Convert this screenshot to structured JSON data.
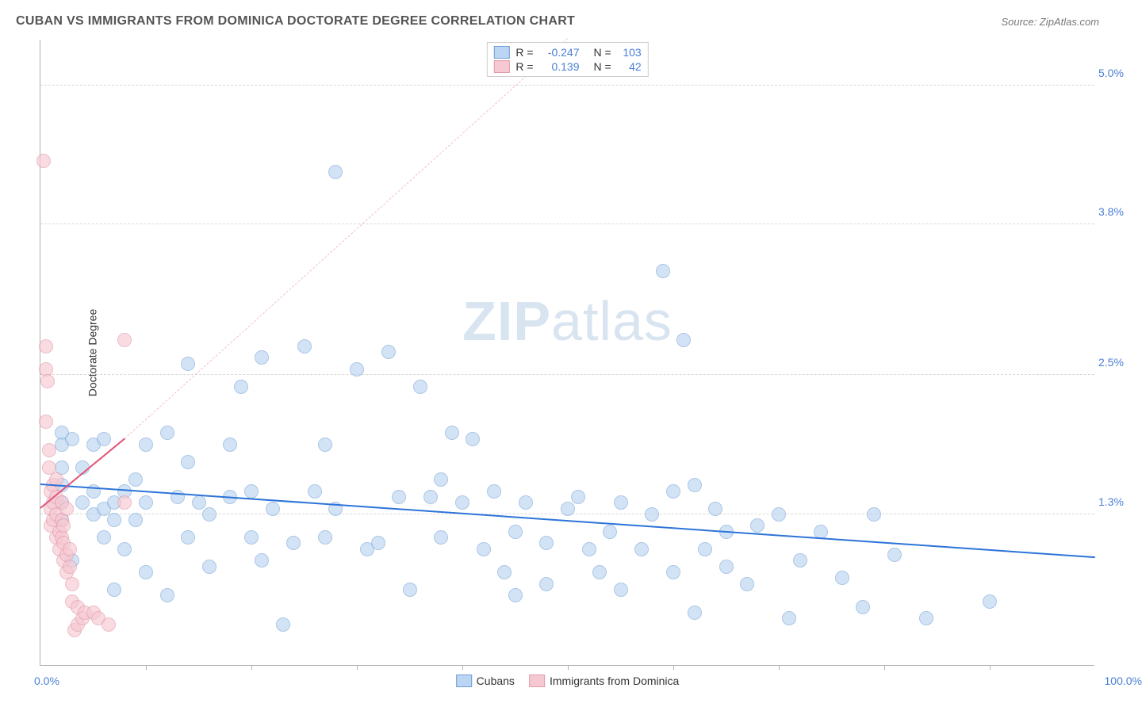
{
  "title": "CUBAN VS IMMIGRANTS FROM DOMINICA DOCTORATE DEGREE CORRELATION CHART",
  "source": "Source: ZipAtlas.com",
  "ylabel": "Doctorate Degree",
  "watermark_bold": "ZIP",
  "watermark_light": "atlas",
  "chart": {
    "type": "scatter",
    "xlim": [
      0,
      100
    ],
    "ylim": [
      0,
      5.4
    ],
    "x_ticks_labels": [
      {
        "pos": 0,
        "label": "0.0%"
      },
      {
        "pos": 100,
        "label": "100.0%"
      }
    ],
    "x_minor_tick_step": 10,
    "y_ticks": [
      {
        "pos": 1.3,
        "label": "1.3%"
      },
      {
        "pos": 2.5,
        "label": "2.5%"
      },
      {
        "pos": 3.8,
        "label": "3.8%"
      },
      {
        "pos": 5.0,
        "label": "5.0%"
      }
    ],
    "y_tick_color": "#4a7fd6",
    "x_tick_color": "#4a7fd6",
    "grid_color": "#d9d9d9",
    "background_color": "#ffffff",
    "marker_radius": 9,
    "series": [
      {
        "name": "Cubans",
        "fill": "#bcd5f2",
        "stroke": "#7fa9d8",
        "fill_opacity": 0.65,
        "legend_fill": "#bcd5f2",
        "legend_stroke": "#6f9fd6",
        "R": "-0.247",
        "N": "103",
        "trend": {
          "x1": 0,
          "y1": 1.55,
          "x2": 100,
          "y2": 0.92,
          "color": "#2d73d8",
          "width": 2.5,
          "solid": true
        },
        "points": [
          [
            2,
            2.0
          ],
          [
            2,
            1.9
          ],
          [
            2,
            1.7
          ],
          [
            2,
            1.55
          ],
          [
            2,
            1.4
          ],
          [
            2,
            1.25
          ],
          [
            3,
            1.95
          ],
          [
            3,
            0.9
          ],
          [
            4,
            1.7
          ],
          [
            4,
            1.4
          ],
          [
            5,
            1.3
          ],
          [
            5,
            1.5
          ],
          [
            5,
            1.9
          ],
          [
            6,
            1.95
          ],
          [
            6,
            1.35
          ],
          [
            6,
            1.1
          ],
          [
            7,
            1.4
          ],
          [
            7,
            1.25
          ],
          [
            7,
            0.65
          ],
          [
            8,
            1.5
          ],
          [
            8,
            1.0
          ],
          [
            9,
            1.6
          ],
          [
            9,
            1.25
          ],
          [
            10,
            1.9
          ],
          [
            10,
            1.4
          ],
          [
            10,
            0.8
          ],
          [
            12,
            2.0
          ],
          [
            12,
            0.6
          ],
          [
            13,
            1.45
          ],
          [
            14,
            2.6
          ],
          [
            14,
            1.75
          ],
          [
            14,
            1.1
          ],
          [
            15,
            1.4
          ],
          [
            16,
            1.3
          ],
          [
            16,
            0.85
          ],
          [
            18,
            1.9
          ],
          [
            18,
            1.45
          ],
          [
            19,
            2.4
          ],
          [
            20,
            1.5
          ],
          [
            20,
            1.1
          ],
          [
            21,
            2.65
          ],
          [
            21,
            0.9
          ],
          [
            22,
            1.35
          ],
          [
            23,
            0.35
          ],
          [
            24,
            1.05
          ],
          [
            25,
            2.75
          ],
          [
            26,
            1.5
          ],
          [
            27,
            1.9
          ],
          [
            27,
            1.1
          ],
          [
            28,
            4.25
          ],
          [
            28,
            1.35
          ],
          [
            30,
            2.55
          ],
          [
            31,
            1.0
          ],
          [
            32,
            1.05
          ],
          [
            33,
            2.7
          ],
          [
            34,
            1.45
          ],
          [
            35,
            0.65
          ],
          [
            36,
            2.4
          ],
          [
            37,
            1.45
          ],
          [
            38,
            1.1
          ],
          [
            38,
            1.6
          ],
          [
            39,
            2.0
          ],
          [
            40,
            1.4
          ],
          [
            41,
            1.95
          ],
          [
            42,
            1.0
          ],
          [
            43,
            1.5
          ],
          [
            44,
            0.8
          ],
          [
            45,
            1.15
          ],
          [
            45,
            0.6
          ],
          [
            46,
            1.4
          ],
          [
            48,
            1.05
          ],
          [
            48,
            0.7
          ],
          [
            50,
            1.35
          ],
          [
            51,
            1.45
          ],
          [
            52,
            1.0
          ],
          [
            53,
            0.8
          ],
          [
            54,
            1.15
          ],
          [
            55,
            1.4
          ],
          [
            55,
            0.65
          ],
          [
            57,
            1.0
          ],
          [
            58,
            1.3
          ],
          [
            59,
            3.4
          ],
          [
            60,
            1.5
          ],
          [
            60,
            0.8
          ],
          [
            61,
            2.8
          ],
          [
            62,
            1.55
          ],
          [
            62,
            0.45
          ],
          [
            63,
            1.0
          ],
          [
            64,
            1.35
          ],
          [
            65,
            1.15
          ],
          [
            65,
            0.85
          ],
          [
            67,
            0.7
          ],
          [
            68,
            1.2
          ],
          [
            70,
            1.3
          ],
          [
            71,
            0.4
          ],
          [
            72,
            0.9
          ],
          [
            74,
            1.15
          ],
          [
            76,
            0.75
          ],
          [
            78,
            0.5
          ],
          [
            79,
            1.3
          ],
          [
            81,
            0.95
          ],
          [
            84,
            0.4
          ],
          [
            90,
            0.55
          ]
        ]
      },
      {
        "name": "Immigrants from Dominica",
        "fill": "#f6c8d2",
        "stroke": "#e19cab",
        "fill_opacity": 0.65,
        "legend_fill": "#f6c8d2",
        "legend_stroke": "#e19cab",
        "R": "0.139",
        "N": "42",
        "trend_solid": {
          "x1": 0,
          "y1": 1.35,
          "x2": 8,
          "y2": 1.95,
          "color": "#e05577",
          "width": 2.5,
          "solid": true
        },
        "trend_dashed": {
          "x1": 8,
          "y1": 1.95,
          "x2": 50,
          "y2": 5.4,
          "color": "#f2c0cd",
          "width": 1.5,
          "solid": false
        },
        "points": [
          [
            0.3,
            4.35
          ],
          [
            0.5,
            2.75
          ],
          [
            0.5,
            2.55
          ],
          [
            0.5,
            2.1
          ],
          [
            0.7,
            2.45
          ],
          [
            0.8,
            1.7
          ],
          [
            0.8,
            1.85
          ],
          [
            1.0,
            1.5
          ],
          [
            1.0,
            1.35
          ],
          [
            1.0,
            1.2
          ],
          [
            1.2,
            1.55
          ],
          [
            1.2,
            1.4
          ],
          [
            1.2,
            1.25
          ],
          [
            1.5,
            1.1
          ],
          [
            1.5,
            1.3
          ],
          [
            1.5,
            1.45
          ],
          [
            1.5,
            1.6
          ],
          [
            1.8,
            1.0
          ],
          [
            1.8,
            1.15
          ],
          [
            2.0,
            1.1
          ],
          [
            2.0,
            1.25
          ],
          [
            2.0,
            1.4
          ],
          [
            2.2,
            0.9
          ],
          [
            2.2,
            1.05
          ],
          [
            2.2,
            1.2
          ],
          [
            2.5,
            0.8
          ],
          [
            2.5,
            0.95
          ],
          [
            2.5,
            1.35
          ],
          [
            2.8,
            0.85
          ],
          [
            2.8,
            1.0
          ],
          [
            3.0,
            0.7
          ],
          [
            3.0,
            0.55
          ],
          [
            3.2,
            0.3
          ],
          [
            3.5,
            0.35
          ],
          [
            3.5,
            0.5
          ],
          [
            4.0,
            0.4
          ],
          [
            4.2,
            0.45
          ],
          [
            5.0,
            0.45
          ],
          [
            5.5,
            0.4
          ],
          [
            6.5,
            0.35
          ],
          [
            8.0,
            2.8
          ],
          [
            8.0,
            1.4
          ]
        ]
      }
    ]
  },
  "legend_top_labels": {
    "R": "R =",
    "N": "N ="
  },
  "legend_value_color": "#4a7fd6"
}
